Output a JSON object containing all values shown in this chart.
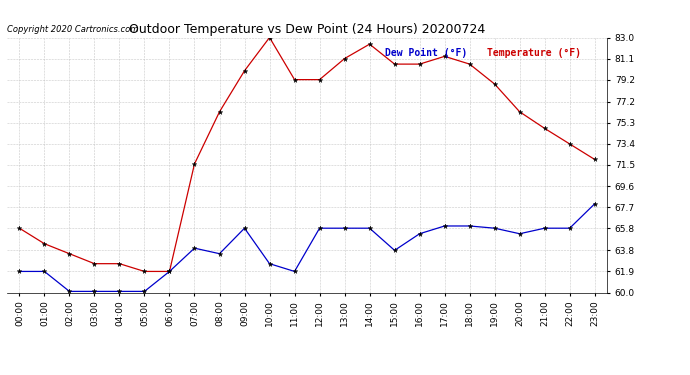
{
  "title": "Outdoor Temperature vs Dew Point (24 Hours) 20200724",
  "copyright": "Copyright 2020 Cartronics.com",
  "legend_dew": "Dew Point (°F)",
  "legend_temp": "Temperature (°F)",
  "hours": [
    "00:00",
    "01:00",
    "02:00",
    "03:00",
    "04:00",
    "05:00",
    "06:00",
    "07:00",
    "08:00",
    "09:00",
    "10:00",
    "11:00",
    "12:00",
    "13:00",
    "14:00",
    "15:00",
    "16:00",
    "17:00",
    "18:00",
    "19:00",
    "20:00",
    "21:00",
    "22:00",
    "23:00"
  ],
  "temperature": [
    65.8,
    64.4,
    63.5,
    62.6,
    62.6,
    61.9,
    61.9,
    71.6,
    76.3,
    80.0,
    83.0,
    79.2,
    79.2,
    81.1,
    82.4,
    80.6,
    80.6,
    81.3,
    80.6,
    78.8,
    76.3,
    74.8,
    73.4,
    72.0
  ],
  "dew_point": [
    61.9,
    61.9,
    60.1,
    60.1,
    60.1,
    60.1,
    61.9,
    64.0,
    63.5,
    65.8,
    62.6,
    61.9,
    65.8,
    65.8,
    65.8,
    63.8,
    65.3,
    66.0,
    66.0,
    65.8,
    65.3,
    65.8,
    65.8,
    68.0
  ],
  "ylim_min": 60.0,
  "ylim_max": 83.0,
  "yticks": [
    60.0,
    61.9,
    63.8,
    65.8,
    67.7,
    69.6,
    71.5,
    73.4,
    75.3,
    77.2,
    79.2,
    81.1,
    83.0
  ],
  "temp_color": "#cc0000",
  "dew_color": "#0000cc",
  "marker_color": "#000000",
  "bg_color": "#ffffff",
  "grid_color": "#bbbbbb",
  "title_fontsize": 9,
  "tick_fontsize": 6.5,
  "copyright_fontsize": 6,
  "legend_fontsize": 7
}
